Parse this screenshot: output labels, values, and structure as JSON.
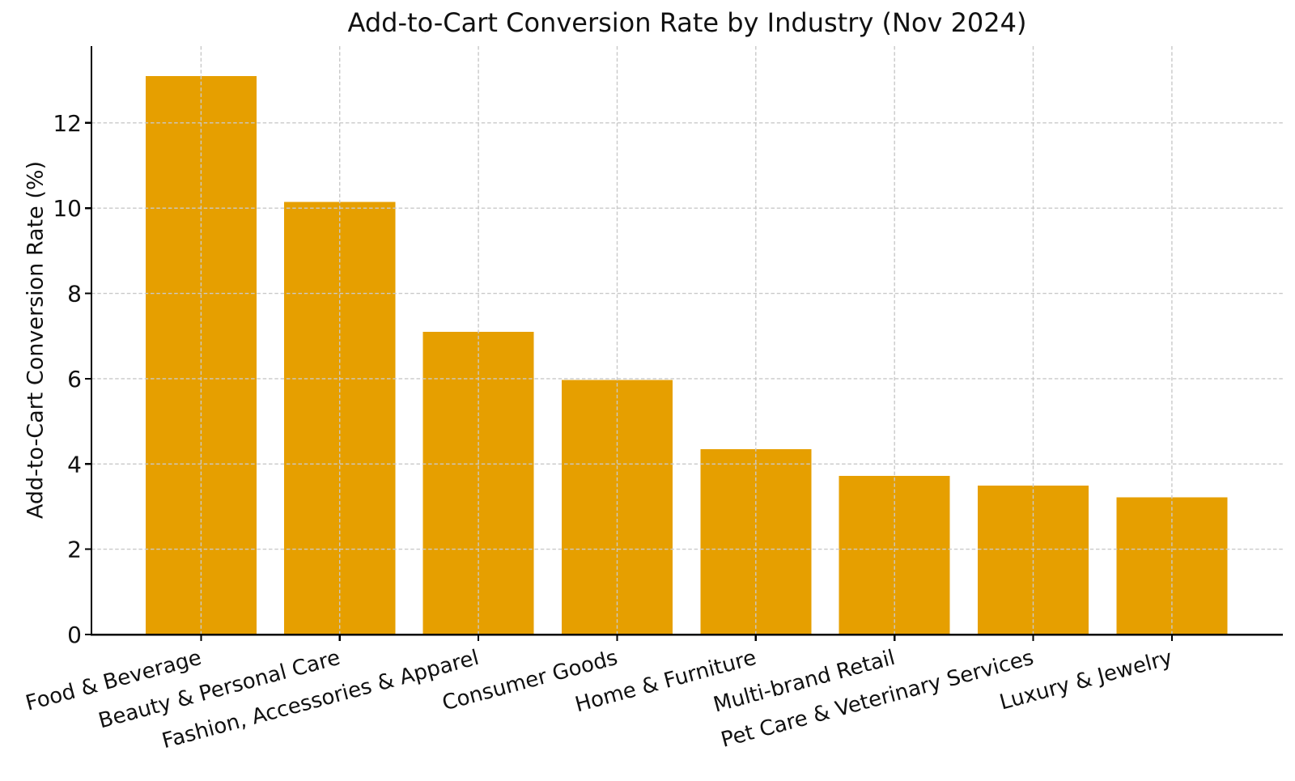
{
  "chart_data": {
    "type": "bar",
    "title": "Add-to-Cart Conversion Rate by Industry (Nov 2024)",
    "xlabel": "",
    "ylabel": "Add-to-Cart Conversion Rate (%)",
    "categories": [
      "Food & Beverage",
      "Beauty & Personal Care",
      "Fashion, Accessories & Apparel",
      "Consumer Goods",
      "Home & Furniture",
      "Multi-brand Retail",
      "Pet Care & Veterinary Services",
      "Luxury & Jewelry"
    ],
    "values": [
      13.1,
      10.15,
      7.1,
      5.97,
      4.35,
      3.72,
      3.49,
      3.22
    ],
    "yticks": [
      0,
      2,
      4,
      6,
      8,
      10,
      12
    ],
    "ylim": [
      0,
      13.8
    ],
    "xlim": [
      -0.79,
      7.8
    ],
    "bar_width_units": 0.8,
    "x_tick_label_rotation_deg": 15,
    "grid": true,
    "grid_style": "dashed",
    "grid_over_bars": true,
    "legend": "none",
    "colors": {
      "bar": "#E69F00",
      "grid": "#c9c9c9",
      "spine": "#000000",
      "text": "#111111",
      "background": "#ffffff"
    }
  }
}
